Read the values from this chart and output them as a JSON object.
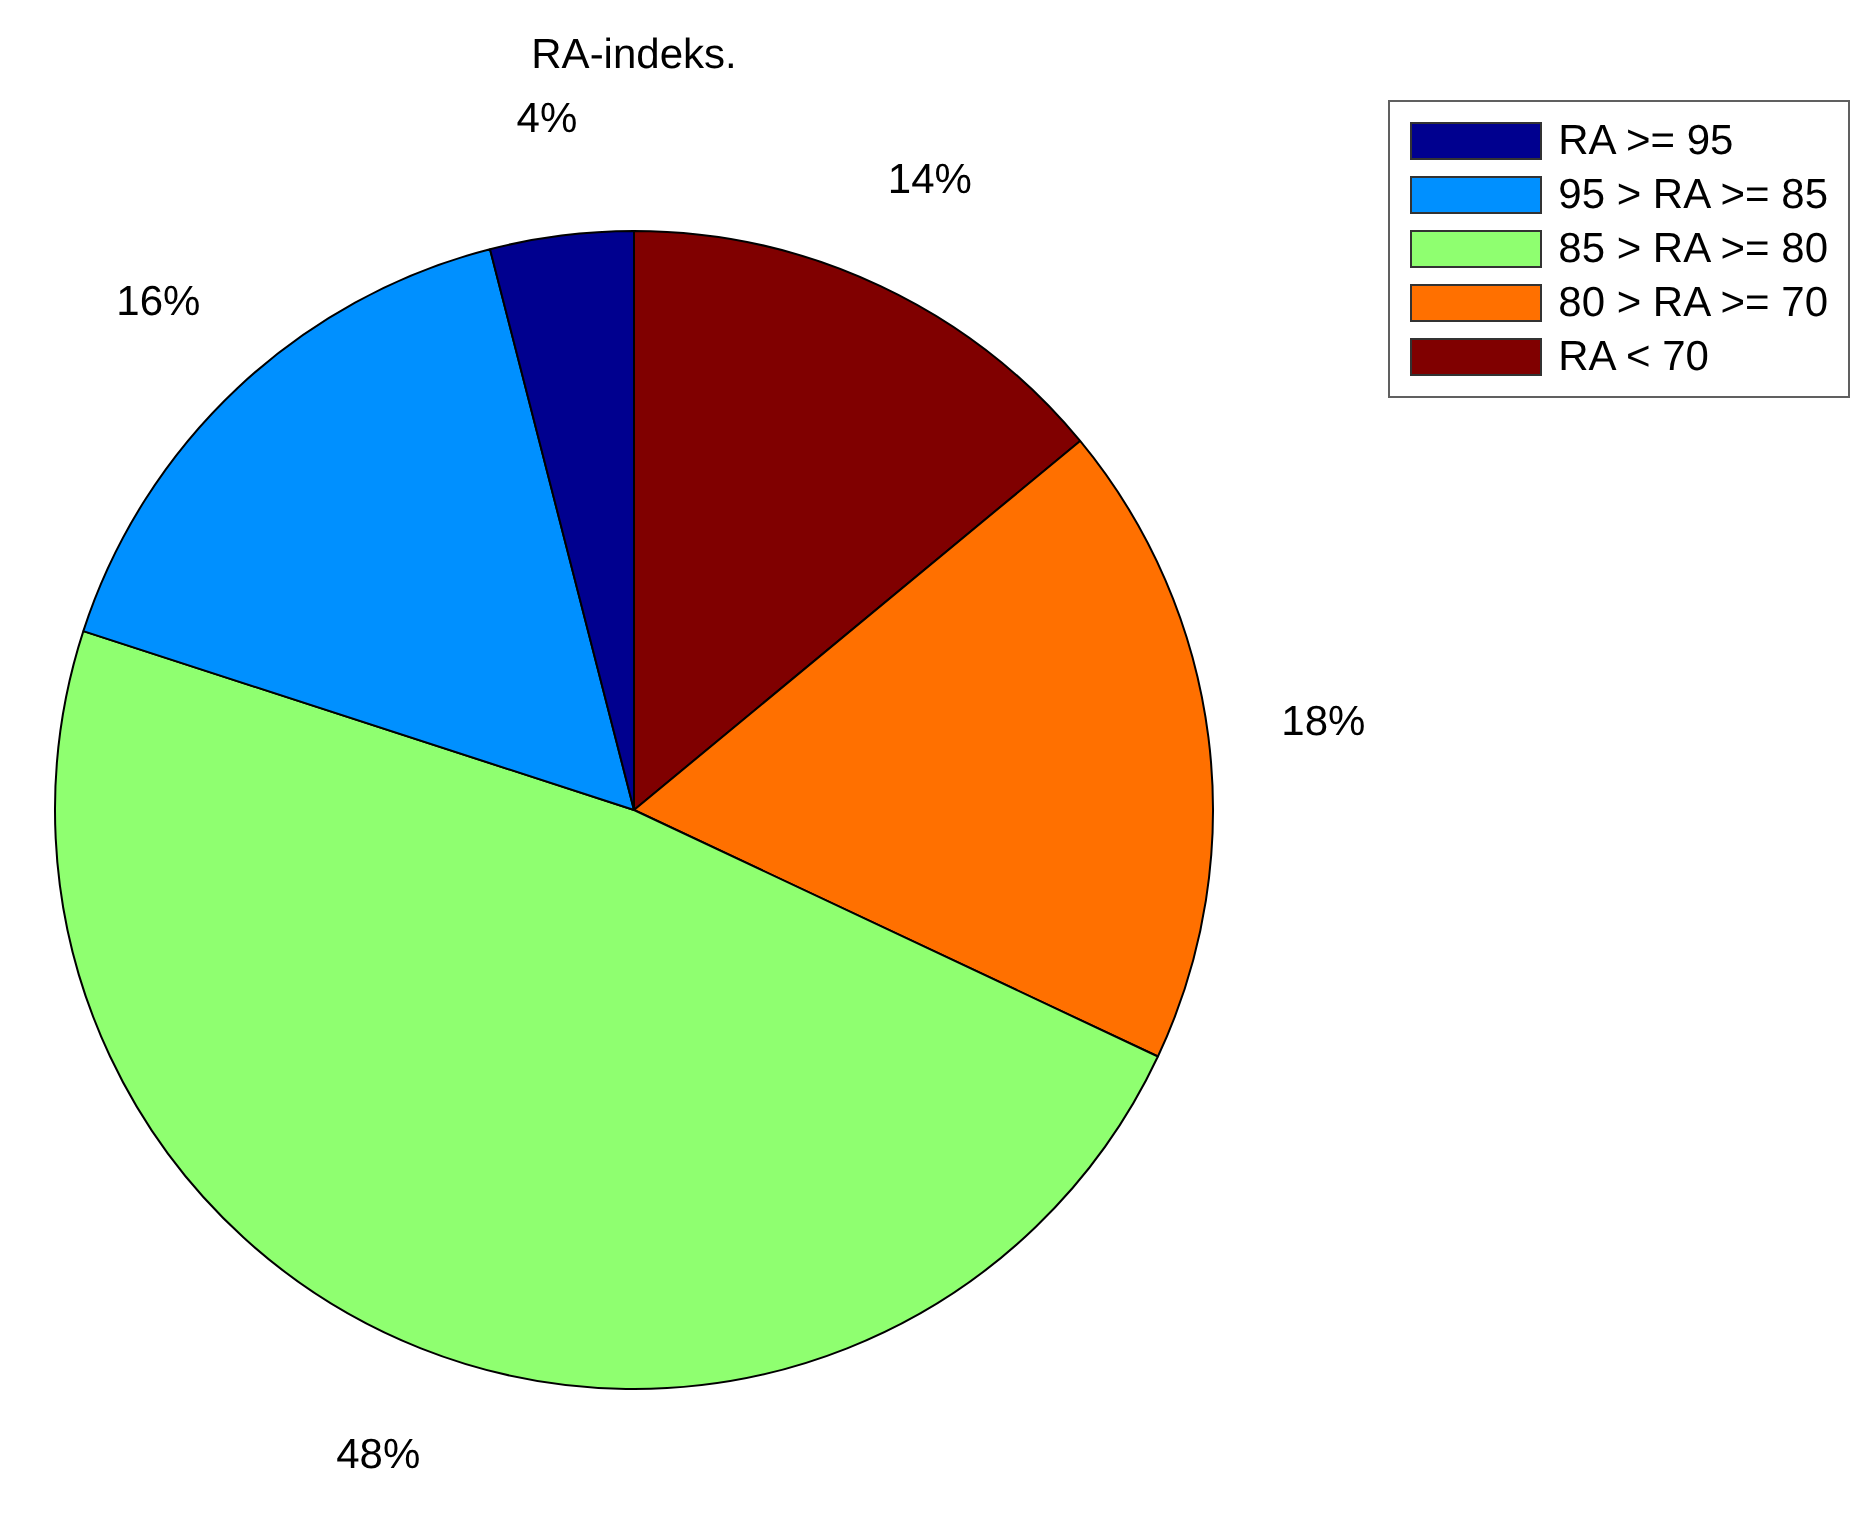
{
  "chart_data": {
    "type": "pie",
    "title": "RA-indeks.",
    "categories": [
      "RA >= 95",
      "95 > RA >= 85",
      "85 > RA >= 80",
      "80 > RA >= 70",
      "RA < 70"
    ],
    "values": [
      4,
      16,
      48,
      18,
      14
    ],
    "colors": [
      "#00008f",
      "#0090ff",
      "#8fff70",
      "#ff7000",
      "#800000"
    ],
    "value_labels": [
      "4%",
      "16%",
      "48%",
      "18%",
      "14%"
    ],
    "legend": "top right"
  }
}
